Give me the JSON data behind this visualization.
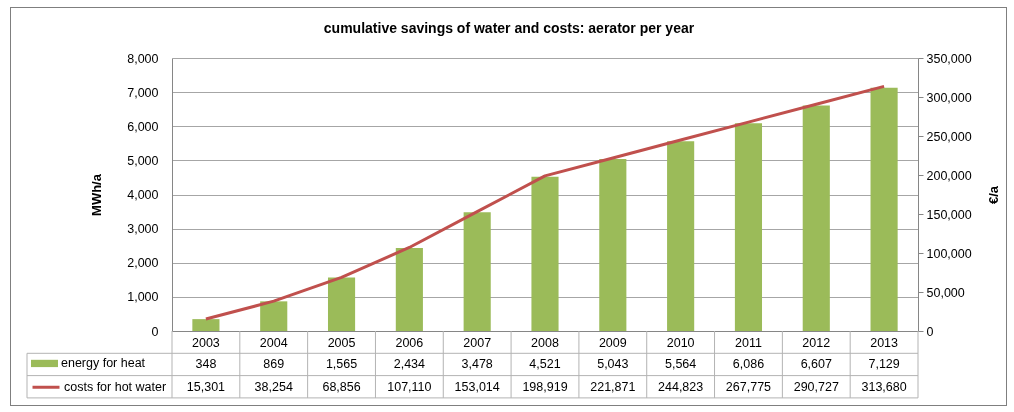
{
  "chart_data": {
    "type": "bar",
    "title": "cumulative savings of water and costs: aerator per year",
    "ylabel": "MWh/a",
    "y2label": "€/a",
    "categories": [
      "2003",
      "2004",
      "2005",
      "2006",
      "2007",
      "2008",
      "2009",
      "2010",
      "2011",
      "2012",
      "2013"
    ],
    "series": [
      {
        "name": "energy for heat",
        "color": "#9bbb59",
        "values": [
          348,
          869,
          1565,
          2434,
          3478,
          4521,
          5043,
          5564,
          6086,
          6607,
          7129
        ],
        "value_labels": [
          "348",
          "869",
          "1,565",
          "2,434",
          "3,478",
          "4,521",
          "5,043",
          "5,564",
          "6,086",
          "6,607",
          "7,129"
        ]
      },
      {
        "name": "costs for hot water",
        "type": "line",
        "axis": "y2",
        "color": "#c0504d",
        "values": [
          15301,
          38254,
          68856,
          107110,
          153014,
          198919,
          221871,
          244823,
          267775,
          290727,
          313680
        ],
        "value_labels": [
          "15,301",
          "38,254",
          "68,856",
          "107,110",
          "153,014",
          "198,919",
          "221,871",
          "244,823",
          "267,775",
          "290,727",
          "313,680"
        ]
      }
    ],
    "ylim": [
      0,
      8000
    ],
    "yticks": [
      0,
      {
        "value": 1000,
        "label": "1,000"
      },
      {
        "value": 2000,
        "label": "2,000"
      },
      {
        "value": 3000,
        "label": "3,000"
      },
      {
        "value": 4000,
        "label": "4,000"
      },
      {
        "value": 5000,
        "label": "5,000"
      },
      {
        "value": 6000,
        "label": "6,000"
      },
      {
        "value": 7000,
        "label": "7,000"
      },
      {
        "value": 8000,
        "label": "8,000"
      }
    ],
    "y2lim": [
      0,
      350000
    ],
    "y2ticks": [
      0,
      {
        "value": 50000,
        "label": "50,000"
      },
      {
        "value": 100000,
        "label": "100,000"
      },
      {
        "value": 150000,
        "label": "150,000"
      },
      {
        "value": 200000,
        "label": "200,000"
      },
      {
        "value": 250000,
        "label": "250,000"
      },
      {
        "value": 300000,
        "label": "300,000"
      },
      {
        "value": 350000,
        "label": "350,000"
      }
    ],
    "grid": "y",
    "legend": "bottom left"
  }
}
